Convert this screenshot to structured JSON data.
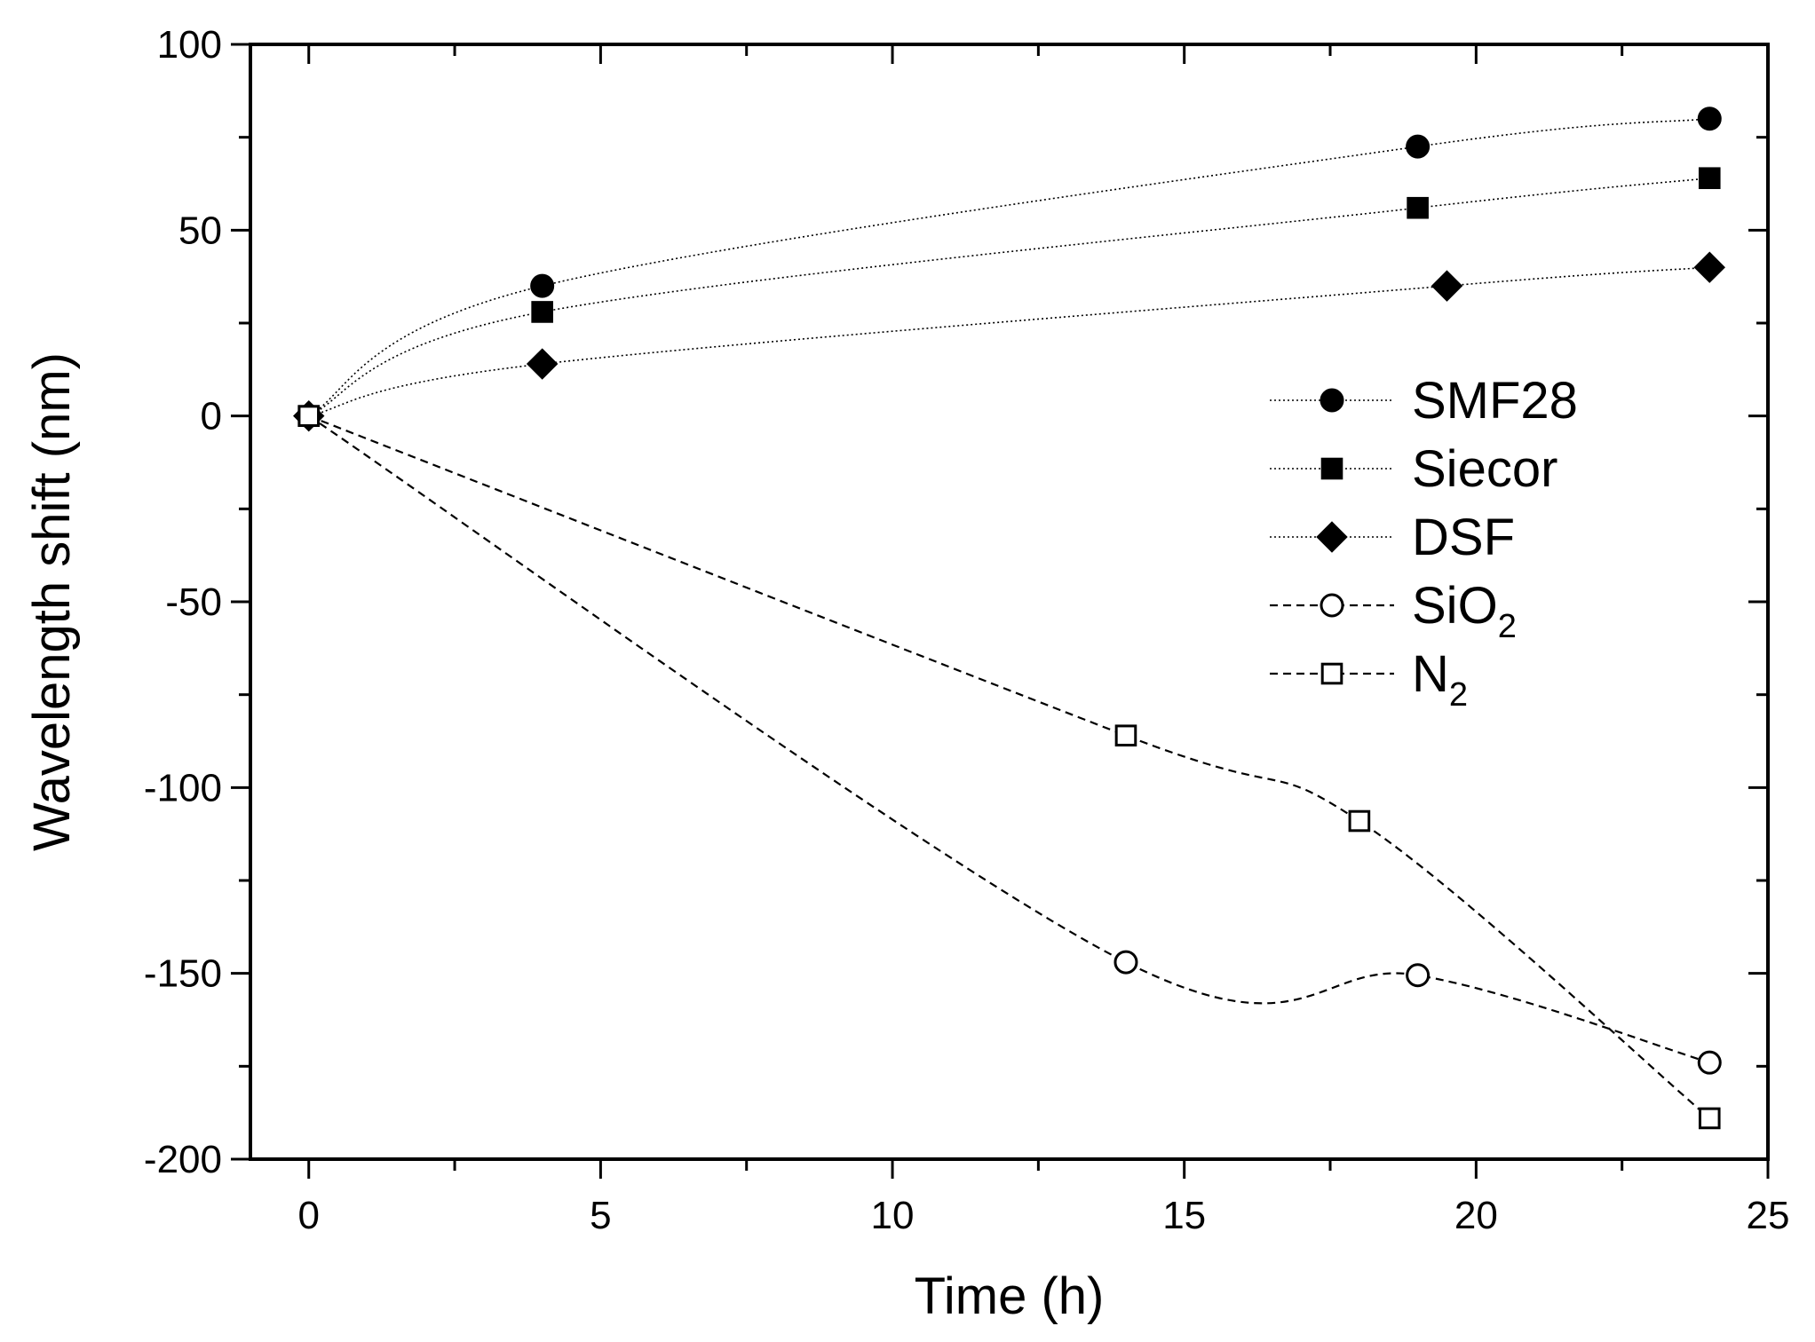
{
  "chart_data": {
    "type": "line",
    "xlabel": "Time (h)",
    "ylabel": "Wavelength shift (nm)",
    "xlim": [
      -1,
      25
    ],
    "ylim": [
      -200,
      100
    ],
    "xticks": [
      0,
      5,
      10,
      15,
      20,
      25
    ],
    "yticks": [
      -200,
      -150,
      -100,
      -50,
      0,
      50,
      100
    ],
    "grid": false,
    "legend_position": "right-center",
    "series": [
      {
        "name": "SMF28",
        "label_main": "SMF28",
        "label_sub": "",
        "marker": "circle",
        "filled": true,
        "dash": "dotted",
        "x": [
          0,
          4,
          19,
          24
        ],
        "y": [
          0,
          35,
          72.5,
          80
        ]
      },
      {
        "name": "Siecor",
        "label_main": "Siecor",
        "label_sub": "",
        "marker": "square",
        "filled": true,
        "dash": "dotted",
        "x": [
          0,
          4,
          19,
          24
        ],
        "y": [
          0,
          28,
          56,
          64
        ]
      },
      {
        "name": "DSF",
        "label_main": "DSF",
        "label_sub": "",
        "marker": "diamond",
        "filled": true,
        "dash": "dotted",
        "x": [
          0,
          4,
          19.5,
          24
        ],
        "y": [
          0,
          14,
          35,
          40
        ]
      },
      {
        "name": "SiO2",
        "label_main": "SiO",
        "label_sub": "2",
        "marker": "circle",
        "filled": false,
        "dash": "dashed",
        "x": [
          0,
          14,
          19,
          24
        ],
        "y": [
          0,
          -147,
          -150.5,
          -174
        ]
      },
      {
        "name": "N2",
        "label_main": "N",
        "label_sub": "2",
        "marker": "square",
        "filled": false,
        "dash": "dashed",
        "x": [
          0,
          14,
          18,
          24
        ],
        "y": [
          0,
          -86,
          -109,
          -189
        ]
      }
    ]
  }
}
